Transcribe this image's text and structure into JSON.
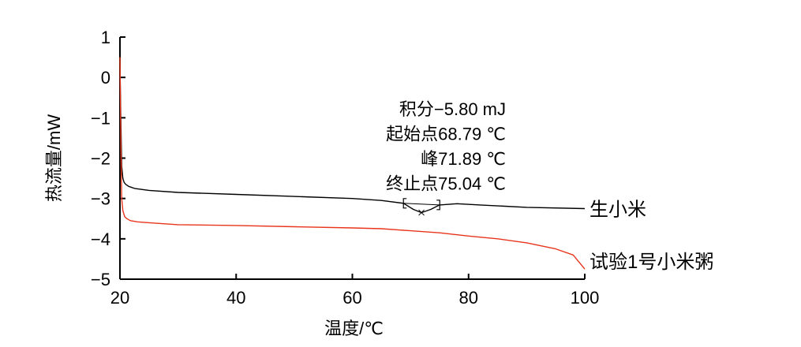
{
  "chart_data": {
    "type": "line",
    "title": "",
    "xlabel": "温度/℃",
    "ylabel": "热流量/mW",
    "xlim": [
      20,
      100
    ],
    "ylim": [
      -5,
      1
    ],
    "x_ticks": [
      20,
      40,
      60,
      80,
      100
    ],
    "y_ticks": [
      1,
      0,
      -1,
      -2,
      -3,
      -4,
      -5
    ],
    "x_tick_labels": [
      "20",
      "40",
      "60",
      "80",
      "100"
    ],
    "y_tick_labels": [
      "1",
      "0",
      "−1",
      "−2",
      "−3",
      "−4",
      "−5"
    ],
    "grid": false,
    "series": [
      {
        "name": "生小米",
        "color": "#000000",
        "x": [
          20.0,
          20.15,
          20.3,
          20.5,
          20.7,
          21.0,
          21.5,
          22.5,
          25,
          30,
          40,
          50,
          60,
          65,
          68.8,
          70.5,
          71.9,
          73.5,
          75.0,
          78,
          82,
          90,
          100
        ],
        "y": [
          0.3,
          -1.0,
          -2.2,
          -2.5,
          -2.6,
          -2.65,
          -2.7,
          -2.75,
          -2.8,
          -2.85,
          -2.9,
          -2.95,
          -3.0,
          -3.05,
          -3.12,
          -3.27,
          -3.35,
          -3.27,
          -3.16,
          -3.13,
          -3.16,
          -3.22,
          -3.25
        ]
      },
      {
        "name": "试验1号小米粥",
        "color": "#e8351c",
        "x": [
          20.0,
          20.15,
          20.3,
          20.5,
          20.8,
          21.2,
          21.8,
          23,
          25,
          27,
          30,
          40,
          50,
          60,
          65,
          70,
          75,
          80,
          85,
          90,
          95,
          98,
          100
        ],
        "y": [
          0.5,
          -1.5,
          -3.0,
          -3.3,
          -3.45,
          -3.5,
          -3.55,
          -3.58,
          -3.6,
          -3.62,
          -3.65,
          -3.67,
          -3.7,
          -3.73,
          -3.75,
          -3.8,
          -3.85,
          -3.93,
          -4.0,
          -4.1,
          -4.25,
          -4.4,
          -4.75
        ]
      }
    ],
    "series_labels": [
      {
        "text": "生小米",
        "x": 100,
        "y": -3.25
      },
      {
        "text": "试验1号小米粥",
        "x": 100,
        "y": -4.55
      }
    ],
    "annotations": {
      "lines": [
        "积分−5.80 mJ",
        "起始点68.79 ℃",
        "峰71.89 ℃",
        "终止点75.04 ℃"
      ],
      "onset_x": 68.79,
      "peak_x": 71.89,
      "endset_x": 75.04
    }
  }
}
